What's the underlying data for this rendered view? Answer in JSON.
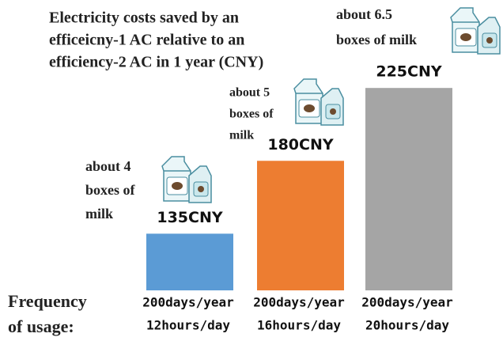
{
  "chart_data": {
    "type": "bar",
    "title": [
      "Electricity costs saved by an",
      "efficeicny-1 AC relative to an",
      "efficiency-2 AC in 1 year (CNY)"
    ],
    "xlabel": [
      "Frequency",
      "of usage:"
    ],
    "categories": [
      [
        "200days/year",
        "12hours/day"
      ],
      [
        "200days/year",
        "16hours/day"
      ],
      [
        "200days/year",
        "20hours/day"
      ]
    ],
    "values": [
      135,
      180,
      225
    ],
    "value_labels": [
      "135CNY",
      "180CNY",
      "225CNY"
    ],
    "colors": [
      "#5b9bd5",
      "#ed7d31",
      "#a5a5a5"
    ],
    "annotations": [
      [
        "about 4",
        "boxes of",
        "milk"
      ],
      [
        "about 5",
        "boxes of",
        "milk"
      ],
      [
        "about 6.5",
        "boxes of milk"
      ]
    ],
    "ylim": [
      100,
      250
    ]
  }
}
